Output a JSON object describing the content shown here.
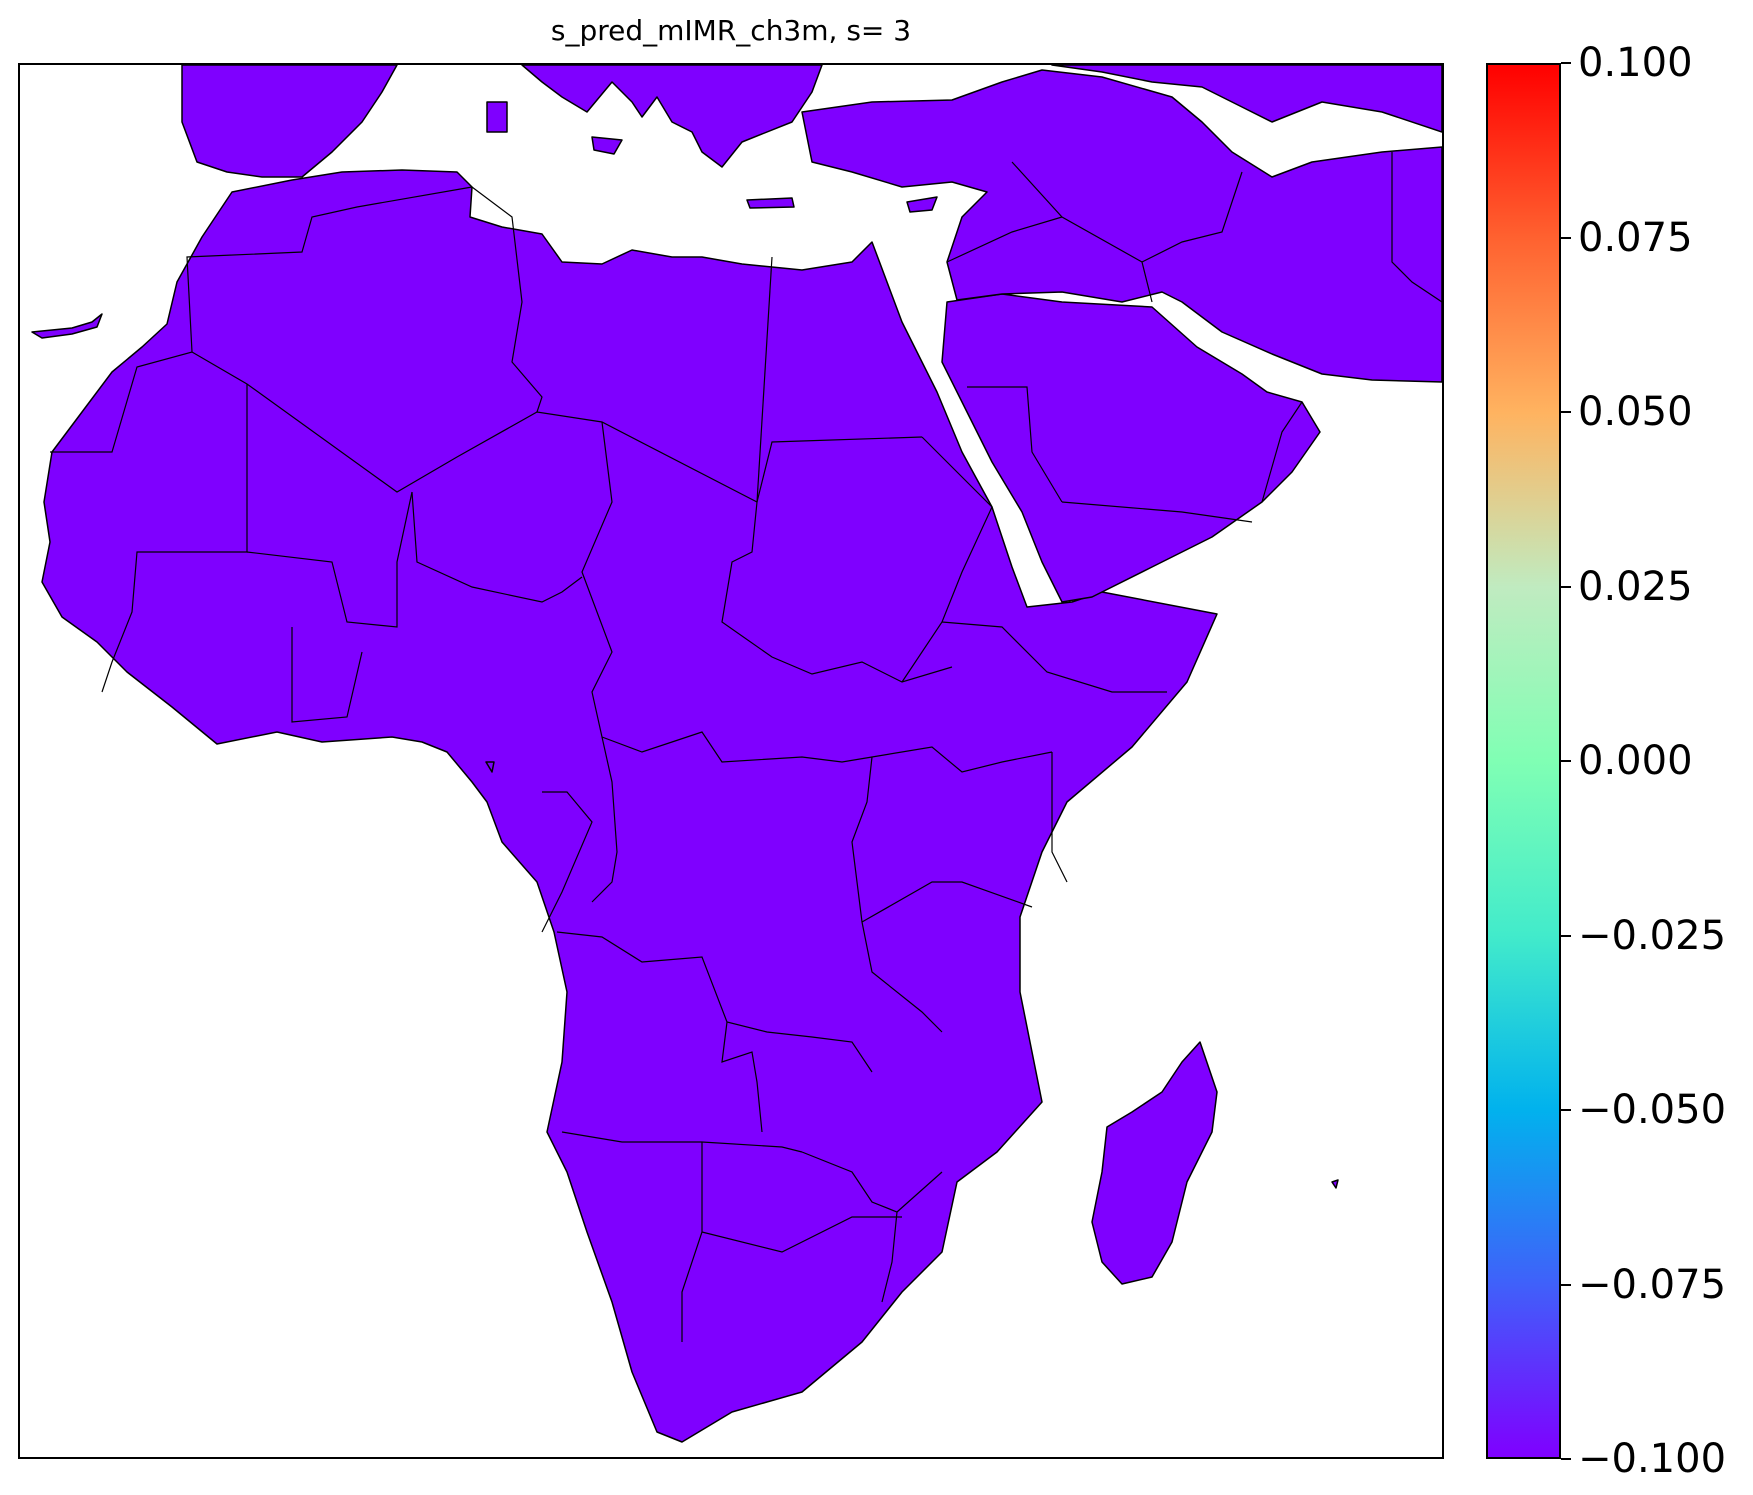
{
  "title": "s_pred_mIMR_ch3m, s= 3",
  "map": {
    "region": "Africa and Middle East",
    "fill_color": "#7f00ff",
    "border_color": "#000000",
    "background_color": "#ffffff"
  },
  "colorbar": {
    "colormap": "rainbow",
    "min": -0.1,
    "max": 0.1,
    "ticks": [
      "0.100",
      "0.075",
      "0.050",
      "0.025",
      "0.000",
      "−0.025",
      "−0.050",
      "−0.075",
      "−0.100"
    ],
    "colors": [
      "#7f00ff",
      "#3f61fa",
      "#01b2ed",
      "#42ebcb",
      "#80ffb4",
      "#c0ebc0",
      "#ffb360",
      "#ff6230",
      "#ff0000"
    ]
  }
}
